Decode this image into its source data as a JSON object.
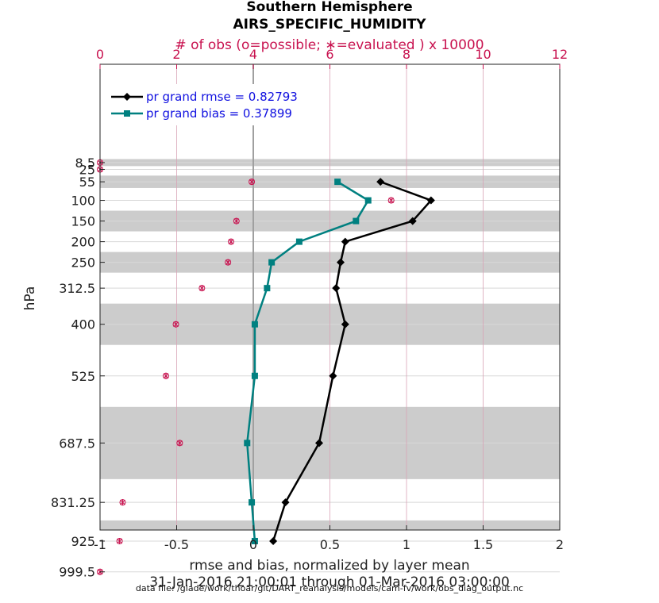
{
  "chart_data": {
    "type": "line",
    "title": "Southern Hemisphere",
    "subtitle": "AIRS_SPECIFIC_HUMIDITY",
    "top_axis_label": "# of obs (o=possible; ∗=evaluated ) x 10000",
    "xlabel": "rmse and bias, normalized by layer mean",
    "ylabel": "hPa",
    "time_range": "31-Jan-2016 21:00:01 through 01-Mar-2016 03:00:00",
    "footnote": "data file: /glade/work/thoar/git/DART_reanalysis/models/cam-fv/work/obs_diag_output.nc",
    "xlim": [
      -1,
      2
    ],
    "x_ticks": [
      "-1",
      "-0.5",
      "0",
      "0.5",
      "1",
      "1.5",
      "2"
    ],
    "top_xlim": [
      0,
      12
    ],
    "top_ticks": [
      "0",
      "2",
      "4",
      "6",
      "8",
      "10",
      "12"
    ],
    "levels": [
      8.5,
      25,
      55,
      100,
      150,
      200,
      250,
      312.5,
      400,
      525,
      687.5,
      831.25,
      925,
      999.5
    ],
    "level_labels": [
      "8.5",
      "25",
      "55",
      "100",
      "150",
      "200",
      "250",
      "312.5",
      "400",
      "525",
      "687.5",
      "831.25",
      "925",
      "999.5"
    ],
    "series": [
      {
        "name": "pr grand rmse",
        "legend": "pr grand rmse = 0.82793",
        "color": "#000000",
        "marker": "diamond",
        "levels": [
          55,
          100,
          150,
          200,
          250,
          312.5,
          400,
          525,
          687.5,
          831.25,
          925
        ],
        "values": [
          0.83,
          1.16,
          1.04,
          0.6,
          0.57,
          0.54,
          0.6,
          0.52,
          0.43,
          0.21,
          0.13
        ]
      },
      {
        "name": "pr grand bias",
        "legend": "pr grand bias = 0.37899",
        "color": "#008080",
        "marker": "square",
        "levels": [
          55,
          100,
          150,
          200,
          250,
          312.5,
          400,
          525,
          687.5,
          831.25,
          925
        ],
        "values": [
          0.55,
          0.75,
          0.67,
          0.3,
          0.12,
          0.09,
          0.01,
          0.01,
          -0.04,
          -0.01,
          0.01
        ]
      }
    ],
    "obs_counts": {
      "unit": "x 10000",
      "levels": [
        8.5,
        25,
        55,
        100,
        150,
        200,
        250,
        312.5,
        400,
        525,
        687.5,
        831.25,
        925,
        999.5
      ],
      "possible": [
        0,
        0,
        3.96,
        7.6,
        3.56,
        3.42,
        3.34,
        2.66,
        1.98,
        1.72,
        2.08,
        0.59,
        0.51,
        0
      ],
      "evaluated": [
        0,
        0,
        3.96,
        7.6,
        3.56,
        3.42,
        3.34,
        2.66,
        1.98,
        1.72,
        2.08,
        0.59,
        0.51,
        0
      ]
    },
    "shaded_bands_hPa": [
      [
        0,
        17
      ],
      [
        40,
        70
      ],
      [
        125,
        175
      ],
      [
        225,
        275
      ],
      [
        350,
        450
      ],
      [
        600,
        775
      ],
      [
        875,
        975
      ]
    ],
    "grid": true,
    "legend_position": "top-left"
  }
}
